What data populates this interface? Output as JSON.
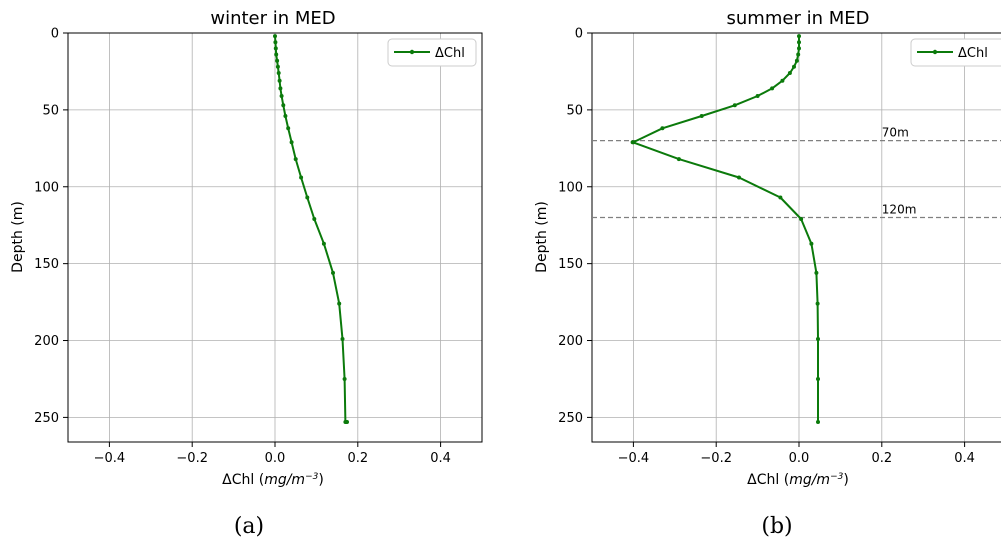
{
  "chart_data": [
    {
      "type": "line",
      "title": "winter in MED",
      "xlabel_prefix": "ΔChl (",
      "xlabel_italic": "mg/m",
      "xlabel_sup": "−3",
      "xlabel_suffix": ")",
      "ylabel": "Depth (m)",
      "xlim": [
        -0.5,
        0.5
      ],
      "ylim": [
        0,
        266
      ],
      "y_inverted": true,
      "grid": true,
      "xticks": [
        -0.4,
        -0.2,
        0.0,
        0.2,
        0.4
      ],
      "xtick_labels": [
        "−0.4",
        "−0.2",
        "0.0",
        "0.2",
        "0.4"
      ],
      "yticks": [
        0,
        50,
        100,
        150,
        200,
        250
      ],
      "ytick_labels": [
        "0",
        "50",
        "100",
        "150",
        "200",
        "250"
      ],
      "legend": "top-right",
      "series": [
        {
          "name": "ΔChl",
          "color": "#0b7a0b",
          "x": [
            0.0,
            0.001,
            0.002,
            0.003,
            0.005,
            0.007,
            0.009,
            0.011,
            0.013,
            0.016,
            0.02,
            0.025,
            0.032,
            0.04,
            0.05,
            0.063,
            0.078,
            0.095,
            0.118,
            0.14,
            0.155,
            0.163,
            0.168,
            0.17,
            0.172,
            0.174
          ],
          "y": [
            2,
            6,
            10,
            14,
            18,
            22,
            26,
            31,
            36,
            41,
            47,
            54,
            62,
            71,
            82,
            94,
            107,
            121,
            137,
            156,
            176,
            199,
            225,
            253,
            253,
            253
          ]
        }
      ],
      "caption": "(a)"
    },
    {
      "type": "line",
      "title": "summer in MED",
      "xlabel_prefix": "ΔChl (",
      "xlabel_italic": "mg/m",
      "xlabel_sup": "−3",
      "xlabel_suffix": ")",
      "ylabel": "Depth (m)",
      "xlim": [
        -0.5,
        0.5
      ],
      "ylim": [
        0,
        266
      ],
      "y_inverted": true,
      "grid": true,
      "xticks": [
        -0.4,
        -0.2,
        0.0,
        0.2,
        0.4
      ],
      "xtick_labels": [
        "−0.4",
        "−0.2",
        "0.0",
        "0.2",
        "0.4"
      ],
      "yticks": [
        0,
        50,
        100,
        150,
        200,
        250
      ],
      "ytick_labels": [
        "0",
        "50",
        "100",
        "150",
        "200",
        "250"
      ],
      "legend": "top-right",
      "series": [
        {
          "name": "ΔChl",
          "color": "#0b7a0b",
          "x": [
            0.0,
            0.0,
            0.0,
            -0.002,
            -0.005,
            -0.012,
            -0.022,
            -0.04,
            -0.065,
            -0.1,
            -0.155,
            -0.235,
            -0.33,
            -0.4,
            -0.402,
            -0.29,
            -0.145,
            -0.045,
            0.005,
            0.03,
            0.042,
            0.045,
            0.046,
            0.046,
            0.046
          ],
          "y": [
            2,
            6,
            10,
            14,
            18,
            22,
            26,
            31,
            36,
            41,
            47,
            54,
            62,
            71,
            71,
            82,
            94,
            107,
            121,
            137,
            156,
            176,
            199,
            225,
            253
          ]
        }
      ],
      "hlines": [
        {
          "y": 70,
          "label": "70m",
          "color": "#808080"
        },
        {
          "y": 120,
          "label": "120m",
          "color": "#808080"
        }
      ],
      "caption": "(b)"
    }
  ]
}
